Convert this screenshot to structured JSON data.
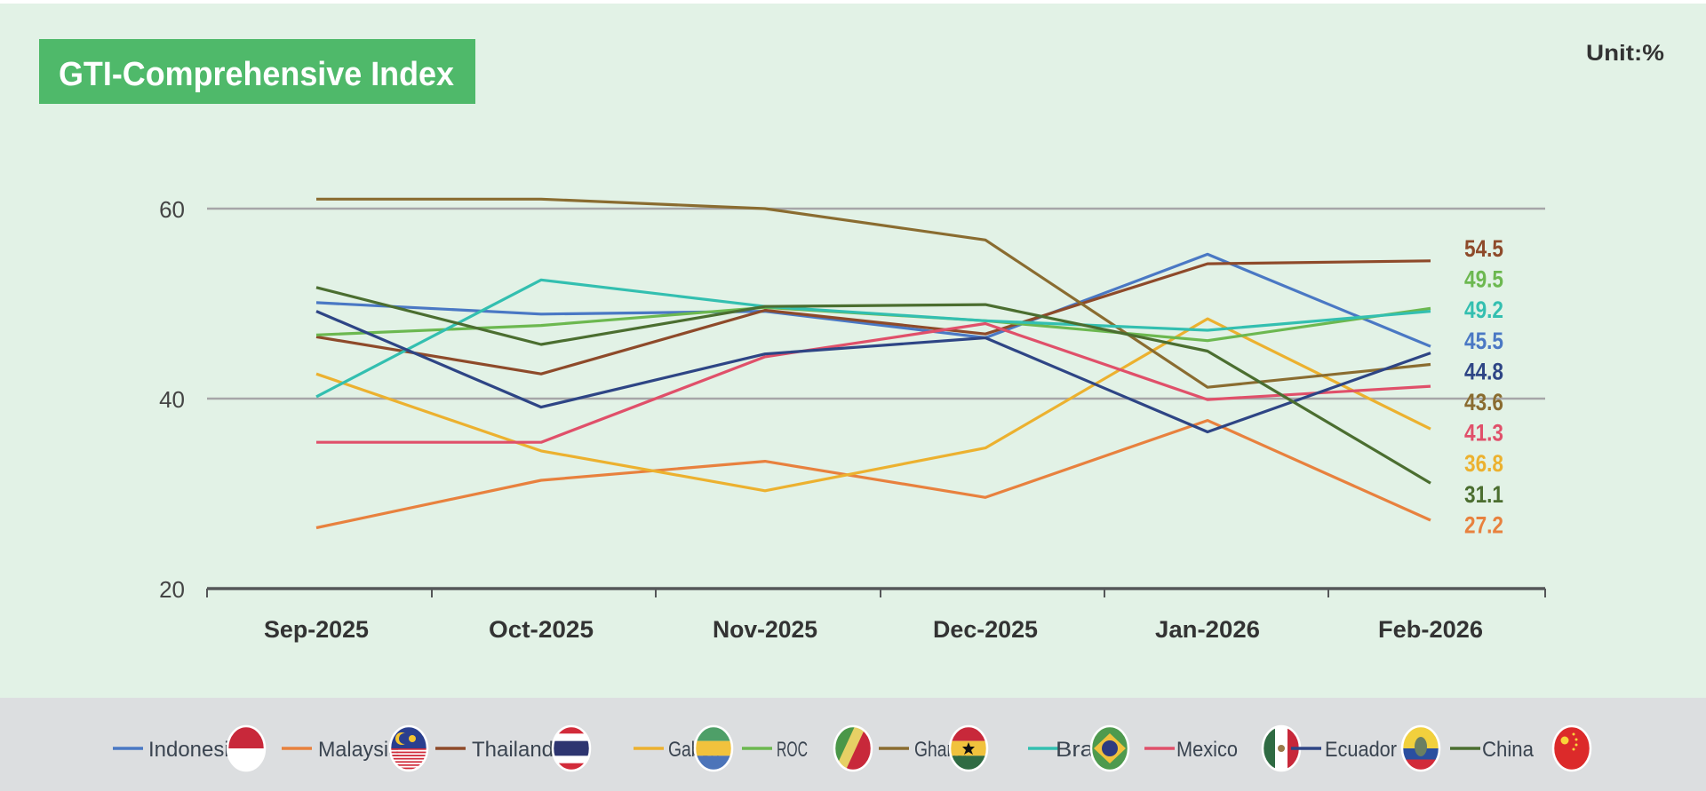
{
  "chart_data": {
    "type": "line",
    "title": "GTI-Comprehensive Index",
    "unit_label": "Unit:%",
    "categories": [
      "Sep-2025",
      "Oct-2025",
      "Nov-2025",
      "Dec-2025",
      "Jan-2026",
      "Feb-2026"
    ],
    "ylim": [
      20,
      60
    ],
    "yticks": [
      "20",
      "40",
      "60"
    ],
    "grid": true,
    "legend_position": "bottom",
    "series": [
      {
        "name": "Indonesia",
        "color": "#4a78c4",
        "flag": "indonesia-flag",
        "values": [
          50.1,
          48.9,
          49.2,
          46.4,
          55.2,
          45.5
        ]
      },
      {
        "name": "Malaysia",
        "color": "#e8813e",
        "flag": "malaysia-flag",
        "values": [
          26.4,
          31.4,
          33.4,
          29.6,
          37.7,
          27.2
        ]
      },
      {
        "name": "Thailand",
        "color": "#8e4a2a",
        "flag": "thailand-flag",
        "values": [
          46.5,
          42.6,
          49.3,
          46.8,
          54.2,
          54.5
        ]
      },
      {
        "name": "Gabon",
        "color": "#ecb12f",
        "flag": "gabon-flag",
        "values": [
          42.6,
          34.5,
          30.3,
          34.8,
          48.4,
          36.8
        ]
      },
      {
        "name": "ROC",
        "color": "#6cb850",
        "flag": "roc-flag",
        "values": [
          46.7,
          47.7,
          49.6,
          48.2,
          46.1,
          49.5
        ]
      },
      {
        "name": "Ghana",
        "color": "#8a6c30",
        "flag": "ghana-flag",
        "values": [
          61.0,
          61.0,
          60.0,
          56.7,
          41.2,
          43.6
        ]
      },
      {
        "name": "Brazil",
        "color": "#33bfb0",
        "flag": "brazil-flag",
        "values": [
          40.2,
          52.5,
          49.7,
          48.2,
          47.2,
          49.2
        ]
      },
      {
        "name": "Mexico",
        "color": "#e0506a",
        "flag": "mexico-flag",
        "values": [
          35.4,
          35.4,
          44.4,
          47.9,
          39.9,
          41.3
        ]
      },
      {
        "name": "Ecuador",
        "color": "#2e4585",
        "flag": "ecuador-flag",
        "values": [
          49.2,
          39.1,
          44.7,
          46.4,
          36.5,
          44.8
        ]
      },
      {
        "name": "China",
        "color": "#4b6e30",
        "flag": "china-flag",
        "values": [
          51.7,
          45.7,
          49.7,
          49.9,
          45.0,
          31.1
        ]
      }
    ],
    "end_labels": [
      {
        "text": "54.5",
        "color": "#8e4a2a"
      },
      {
        "text": "49.5",
        "color": "#6cb850"
      },
      {
        "text": "49.2",
        "color": "#33bfb0"
      },
      {
        "text": "45.5",
        "color": "#4a78c4"
      },
      {
        "text": "44.8",
        "color": "#2e4585"
      },
      {
        "text": "43.6",
        "color": "#8a6c30"
      },
      {
        "text": "41.3",
        "color": "#e0506a"
      },
      {
        "text": "36.8",
        "color": "#ecb12f"
      },
      {
        "text": "31.1",
        "color": "#4b6e30"
      },
      {
        "text": "27.2",
        "color": "#e8813e"
      }
    ]
  },
  "colors": {
    "background": "#e2f2e6",
    "legend_band": "#dcdee0",
    "title_box": "#4fb96a",
    "grid": "#a6a6a8",
    "axis": "#555759"
  }
}
